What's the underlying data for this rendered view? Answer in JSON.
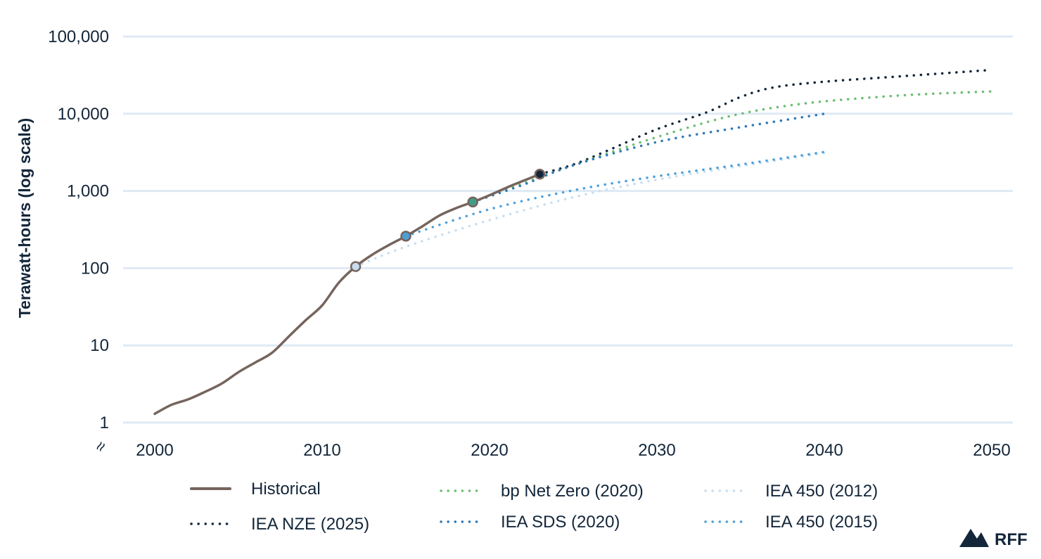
{
  "chart_data": {
    "type": "line",
    "title": "",
    "xlabel": "",
    "ylabel": "Terawatt-hours (log scale)",
    "yscale": "log",
    "xlim": [
      2000,
      2050
    ],
    "ylim": [
      1,
      100000
    ],
    "x_ticks": [
      "2000",
      "2010",
      "2020",
      "2030",
      "2040",
      "2050"
    ],
    "y_ticks": [
      "1",
      "10",
      "100",
      "1,000",
      "10,000",
      "100,000"
    ],
    "axis_break_symbol": "≈",
    "grid": true,
    "legend_position": "bottom",
    "series": [
      {
        "name": "Historical",
        "style": "solid",
        "color": "#76645d",
        "x": [
          2000,
          2001,
          2002,
          2003,
          2004,
          2005,
          2006,
          2007,
          2008,
          2009,
          2010,
          2011,
          2012,
          2013,
          2014,
          2015,
          2016,
          2017,
          2018,
          2019,
          2020,
          2021,
          2022,
          2023
        ],
        "y": [
          1.3,
          1.7,
          2.0,
          2.5,
          3.2,
          4.5,
          6.0,
          8.0,
          13,
          21,
          33,
          65,
          105,
          150,
          200,
          260,
          350,
          480,
          600,
          720,
          880,
          1100,
          1350,
          1650
        ]
      },
      {
        "name": "IEA NZE (2025)",
        "style": "dotted",
        "color": "#13263a",
        "x": [
          2023,
          2025,
          2027,
          2030,
          2033,
          2035,
          2037,
          2040,
          2045,
          2050
        ],
        "y": [
          1650,
          2200,
          3300,
          6300,
          10500,
          16500,
          22000,
          26000,
          31000,
          37000
        ]
      },
      {
        "name": "bp Net Zero (2020)",
        "style": "dotted",
        "color": "#6cbe70",
        "x": [
          2019,
          2022,
          2025,
          2028,
          2030,
          2033,
          2035,
          2037,
          2040,
          2045,
          2050
        ],
        "y": [
          720,
          1250,
          2150,
          3600,
          5000,
          7800,
          10000,
          12000,
          14500,
          17500,
          19500
        ]
      },
      {
        "name": "IEA SDS (2020)",
        "style": "dotted",
        "color": "#2f79b7",
        "x": [
          2019,
          2022,
          2025,
          2030,
          2035,
          2040
        ],
        "y": [
          720,
          1200,
          2150,
          4300,
          6700,
          10000
        ]
      },
      {
        "name": "IEA 450 (2012)",
        "style": "dotted",
        "color": "#c7def0",
        "x": [
          2012,
          2015,
          2020,
          2025,
          2030,
          2035,
          2040
        ],
        "y": [
          105,
          190,
          420,
          830,
          1400,
          2100,
          3100
        ]
      },
      {
        "name": "IEA 450 (2015)",
        "style": "dotted",
        "color": "#4ca0d8",
        "x": [
          2015,
          2020,
          2025,
          2030,
          2035,
          2040
        ],
        "y": [
          260,
          580,
          1020,
          1550,
          2200,
          3200
        ]
      }
    ],
    "markers": [
      {
        "x": 2012,
        "y": 105,
        "fill": "#c7def0"
      },
      {
        "x": 2015,
        "y": 260,
        "fill": "#4ca0d8"
      },
      {
        "x": 2019,
        "y": 720,
        "fill": "#3f9c88"
      },
      {
        "x": 2023,
        "y": 1650,
        "fill": "#13263a"
      }
    ]
  },
  "legend": {
    "items": [
      {
        "label": "Historical",
        "style": "solid",
        "color": "#76645d"
      },
      {
        "label": "IEA NZE (2025)",
        "style": "dotted",
        "color": "#13263a"
      },
      {
        "label": "bp Net Zero (2020)",
        "style": "dotted",
        "color": "#6cbe70"
      },
      {
        "label": "IEA SDS (2020)",
        "style": "dotted",
        "color": "#2f79b7"
      },
      {
        "label": "IEA 450 (2012)",
        "style": "dotted",
        "color": "#c7def0"
      },
      {
        "label": "IEA 450 (2015)",
        "style": "dotted",
        "color": "#4ca0d8"
      }
    ]
  },
  "branding": {
    "logo_text": "RFF",
    "color": "#13263a"
  },
  "colors": {
    "gridline": "#dfeaf5",
    "text": "#13263a",
    "marker_stroke": "#76645d"
  }
}
